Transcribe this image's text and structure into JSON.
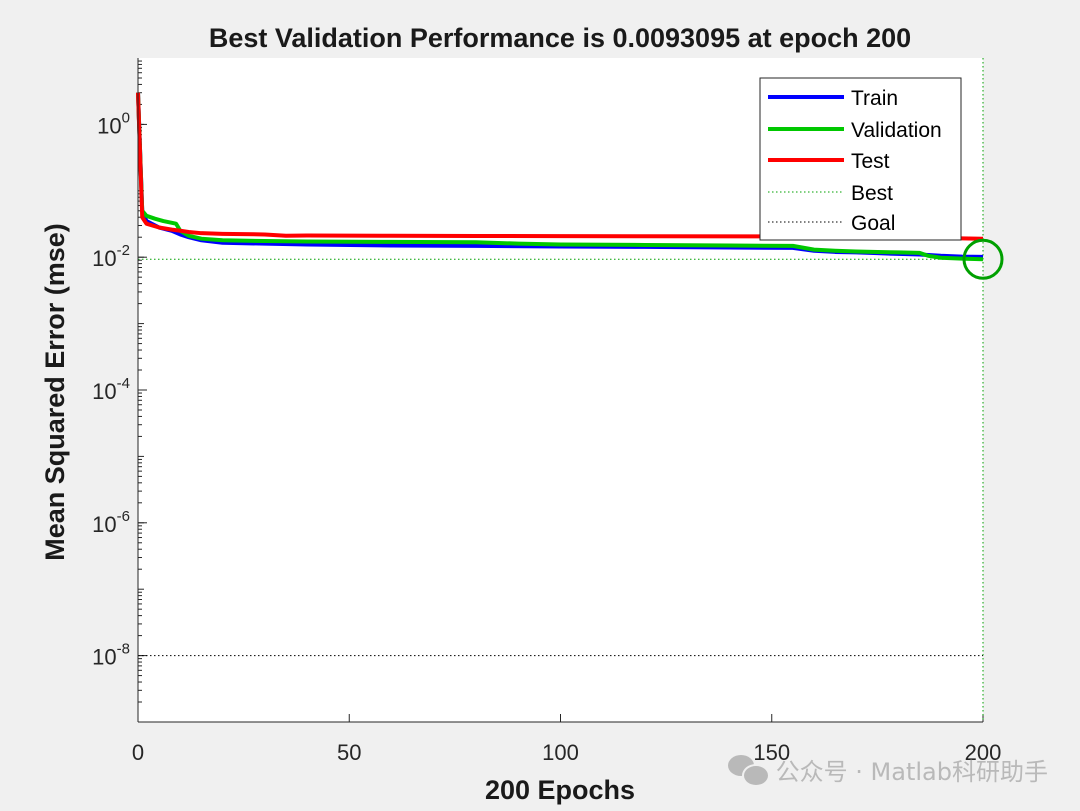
{
  "chart_data": {
    "type": "line",
    "title": "Best Validation Performance is 0.0093095 at epoch 200",
    "xlabel": "200 Epochs",
    "ylabel": "Mean Squared Error  (mse)",
    "xlim": [
      0,
      200
    ],
    "ylim_log10": [
      -9,
      1
    ],
    "yscale": "log",
    "x_ticks": [
      {
        "value": 0,
        "label": "0"
      },
      {
        "value": 50,
        "label": "50"
      },
      {
        "value": 100,
        "label": "100"
      },
      {
        "value": 150,
        "label": "150"
      },
      {
        "value": 200,
        "label": "200"
      }
    ],
    "y_ticks": [
      {
        "exp": 0,
        "base": "10",
        "sup": "0"
      },
      {
        "exp": -2,
        "base": "10",
        "sup": "-2"
      },
      {
        "exp": -4,
        "base": "10",
        "sup": "-4"
      },
      {
        "exp": -6,
        "base": "10",
        "sup": "-6"
      },
      {
        "exp": -8,
        "base": "10",
        "sup": "-8"
      }
    ],
    "series": [
      {
        "name": "Train",
        "color": "#0000ff",
        "x": [
          0,
          1,
          2,
          5,
          8,
          10,
          12,
          15,
          20,
          30,
          40,
          60,
          80,
          100,
          120,
          140,
          155,
          160,
          165,
          170,
          175,
          180,
          185,
          190,
          195,
          200
        ],
        "y": [
          3.0,
          0.05,
          0.035,
          0.028,
          0.025,
          0.022,
          0.02,
          0.018,
          0.0165,
          0.016,
          0.0155,
          0.015,
          0.0148,
          0.0145,
          0.0143,
          0.014,
          0.0138,
          0.0125,
          0.012,
          0.0118,
          0.0115,
          0.0112,
          0.011,
          0.0105,
          0.0102,
          0.0101
        ]
      },
      {
        "name": "Validation",
        "color": "#00c800",
        "x": [
          0,
          1,
          2,
          4,
          6,
          9,
          10,
          12,
          15,
          20,
          30,
          40,
          60,
          80,
          90,
          100,
          120,
          140,
          155,
          160,
          165,
          170,
          175,
          180,
          185,
          187,
          190,
          195,
          200
        ],
        "y": [
          3.0,
          0.05,
          0.042,
          0.038,
          0.035,
          0.032,
          0.025,
          0.021,
          0.019,
          0.018,
          0.0175,
          0.0172,
          0.017,
          0.0168,
          0.016,
          0.0155,
          0.0153,
          0.015,
          0.0148,
          0.013,
          0.0125,
          0.0122,
          0.012,
          0.0118,
          0.0116,
          0.0105,
          0.0098,
          0.0095,
          0.0093095
        ]
      },
      {
        "name": "Test",
        "color": "#ff0000",
        "x": [
          0,
          1,
          2,
          5,
          8,
          10,
          12,
          15,
          20,
          30,
          35,
          40,
          60,
          80,
          100,
          120,
          150,
          160,
          170,
          180,
          190,
          195,
          200
        ],
        "y": [
          3.0,
          0.04,
          0.032,
          0.028,
          0.026,
          0.025,
          0.024,
          0.023,
          0.0225,
          0.022,
          0.021,
          0.0212,
          0.021,
          0.0209,
          0.0208,
          0.0207,
          0.0206,
          0.0205,
          0.0203,
          0.0202,
          0.0195,
          0.0192,
          0.019
        ]
      }
    ],
    "best": {
      "epoch": 200,
      "value": 0.0093095,
      "label": "Best",
      "color": "#00a000"
    },
    "goal": {
      "value": 1e-08,
      "label": "Goal",
      "color": "#000000"
    },
    "legend": {
      "position": "top-right",
      "entries": [
        "Train",
        "Validation",
        "Test",
        "Best",
        "Goal"
      ]
    },
    "grid": false
  },
  "watermark": {
    "text": "公众号 · Matlab科研助手",
    "icon": "wechat-icon"
  }
}
